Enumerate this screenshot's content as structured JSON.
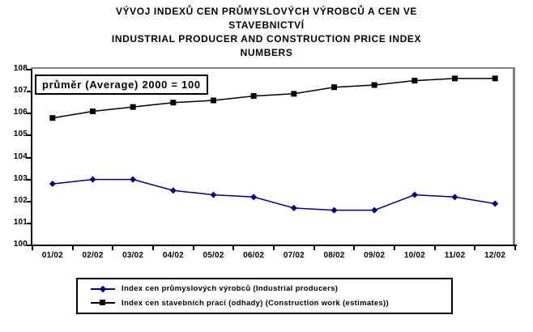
{
  "title": {
    "lines": [
      "VÝVOJ INDEXŮ CEN PRŮMYSLOVÝCH VÝROBCŮ A CEN VE",
      "STAVEBNICTVÍ",
      "INDUSTRIAL PRODUCER AND CONSTRUCTION PRICE INDEX",
      "NUMBERS"
    ]
  },
  "chart_data": {
    "type": "line",
    "title": "VÝVOJ INDEXŮ CEN PRŮMYSLOVÝCH VÝROBCŮ A CEN VE STAVEBNICTVÍ / INDUSTRIAL PRODUCER AND CONSTRUCTION PRICE INDEX NUMBERS",
    "annotation": "průměr (Average) 2000 = 100",
    "categories": [
      "01/02",
      "02/02",
      "03/02",
      "04/02",
      "05/02",
      "06/02",
      "07/02",
      "08/02",
      "09/02",
      "10/02",
      "11/02",
      "12/02"
    ],
    "series": [
      {
        "name": "Index cen průmyslových výrobců  (Industrial producers)",
        "marker": "diamond",
        "color": "#000080",
        "values": [
          102.8,
          103.0,
          103.0,
          102.5,
          102.3,
          102.2,
          101.7,
          101.6,
          101.6,
          102.3,
          102.2,
          101.9
        ]
      },
      {
        "name": "Index cen stavebních prací (odhady) (Construction work (estimates))",
        "marker": "square",
        "color": "#000000",
        "values": [
          105.8,
          106.1,
          106.3,
          106.5,
          106.6,
          106.8,
          106.9,
          107.2,
          107.3,
          107.5,
          107.6,
          107.6
        ]
      }
    ],
    "ylim": [
      100,
      108
    ],
    "y_ticks": [
      100,
      101,
      102,
      103,
      104,
      105,
      106,
      107,
      108
    ],
    "grid": false,
    "legend_position": "bottom"
  },
  "colors": {
    "axis": "#000000",
    "frame_shadow": "#808080",
    "industrial_series": "#000080",
    "construction_series": "#000000",
    "background": "#ffffff"
  }
}
